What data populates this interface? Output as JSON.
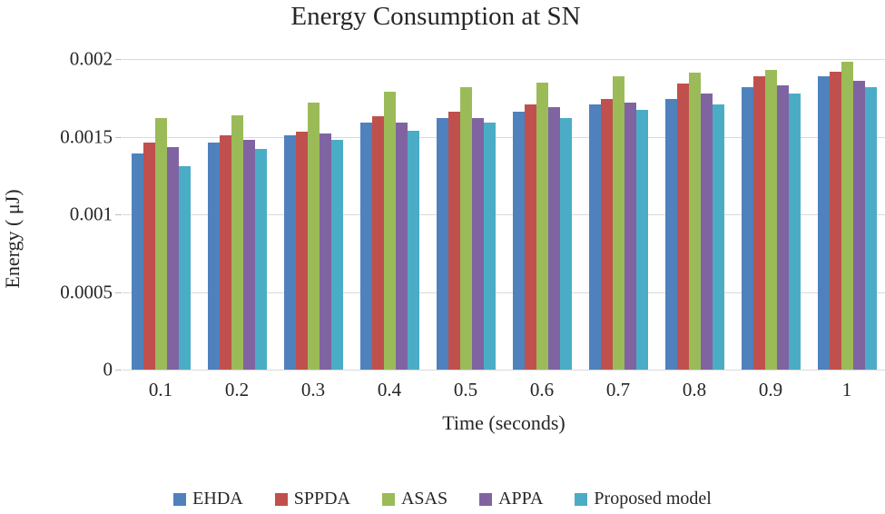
{
  "title": "Energy Consumption at SN",
  "chart_data": {
    "type": "bar",
    "title": "Energy Consumption at SN",
    "xlabel": "Time (seconds)",
    "ylabel": "Energy ( μJ)",
    "categories": [
      "0.1",
      "0.2",
      "0.3",
      "0.4",
      "0.5",
      "0.6",
      "0.7",
      "0.8",
      "0.9",
      "1"
    ],
    "series": [
      {
        "name": "EHDA",
        "color": "#4F81BD",
        "values": [
          0.00139,
          0.00146,
          0.00151,
          0.00159,
          0.00162,
          0.00166,
          0.00171,
          0.00174,
          0.00182,
          0.00189
        ]
      },
      {
        "name": "SPPDA",
        "color": "#C0504D",
        "values": [
          0.00146,
          0.00151,
          0.00153,
          0.00163,
          0.00166,
          0.00171,
          0.00174,
          0.00184,
          0.00189,
          0.00192
        ]
      },
      {
        "name": "ASAS",
        "color": "#9BBB59",
        "values": [
          0.00162,
          0.00164,
          0.00172,
          0.00179,
          0.00182,
          0.00185,
          0.00189,
          0.00191,
          0.00193,
          0.00198
        ]
      },
      {
        "name": "APPA",
        "color": "#8064A2",
        "values": [
          0.00143,
          0.00148,
          0.00152,
          0.00159,
          0.00162,
          0.00169,
          0.00172,
          0.00178,
          0.00183,
          0.00186
        ]
      },
      {
        "name": "Proposed model",
        "color": "#4BACC6",
        "values": [
          0.00131,
          0.00142,
          0.00148,
          0.00154,
          0.00159,
          0.00162,
          0.00167,
          0.00171,
          0.00178,
          0.00182
        ]
      }
    ],
    "ylim": [
      0,
      0.002
    ],
    "yticks": [
      0,
      0.0005,
      0.001,
      0.0015,
      0.002
    ],
    "ytick_labels": [
      "0",
      "0.0005",
      "0.001",
      "0.0015",
      "0.002"
    ],
    "grid": true,
    "legend_position": "bottom"
  },
  "colors": {
    "gridline": "#D9D9D9",
    "tickmark": "#BFBFBF",
    "text": "#262626",
    "background": "#FFFFFF"
  }
}
